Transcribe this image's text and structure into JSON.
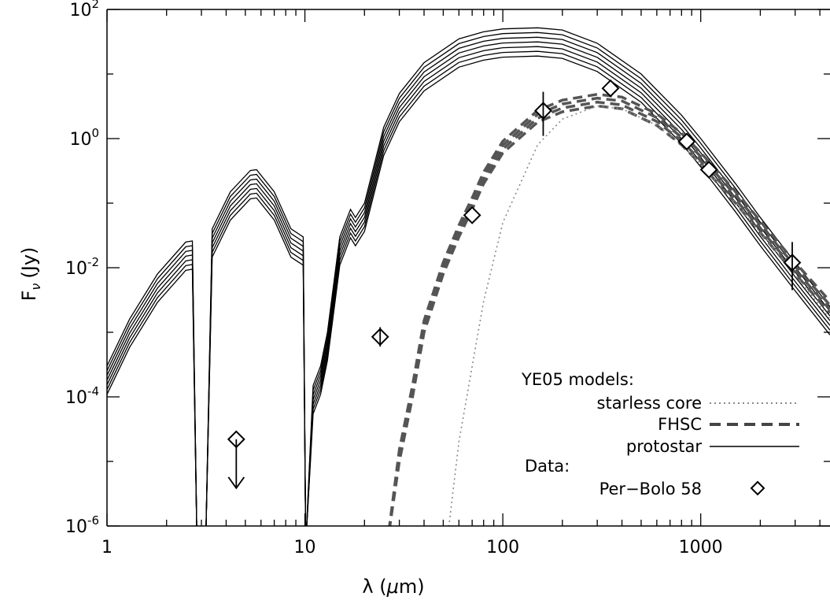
{
  "chart_data": {
    "type": "line",
    "xscale": "log",
    "yscale": "log",
    "xlim": [
      1,
      4500
    ],
    "ylim": [
      1e-06,
      100
    ],
    "xlabel": "λ (μm)",
    "ylabel": "F_ν (Jy)",
    "ylabel_main": "F",
    "ylabel_sub": "ν",
    "ylabel_unit": "(Jy)",
    "xlabel_main": "λ (",
    "xlabel_mu": "μ",
    "xlabel_unit": "m)",
    "x_ticks": [
      1,
      10,
      100,
      1000
    ],
    "x_tick_labels": [
      "1",
      "10",
      "100",
      "1000"
    ],
    "y_ticks": [
      1e-06,
      0.0001,
      0.01,
      1,
      100
    ],
    "y_tick_base": "10",
    "y_tick_exponents": [
      "-6",
      "-4",
      "-2",
      "0",
      "2"
    ],
    "legend": {
      "placement": "bottom-right",
      "heading": "YE05 models:",
      "entries": [
        {
          "label": "starless core",
          "style": "dotted",
          "color": "#888888"
        },
        {
          "label": "FHSC",
          "style": "dashed",
          "color": "#555555"
        },
        {
          "label": "protostar",
          "style": "solid",
          "color": "#000000"
        }
      ],
      "data_heading": "Data:",
      "data_entry": {
        "label": "Per−Bolo 58",
        "marker": "diamond"
      }
    },
    "series": [
      {
        "name": "protostar",
        "style": "solid",
        "color": "#000000",
        "n_curves": 7,
        "offset_dex_per_curve": -0.073,
        "points": [
          [
            1,
            0.0003
          ],
          [
            1.3,
            0.0016
          ],
          [
            1.8,
            0.008
          ],
          [
            2.5,
            0.025
          ],
          [
            2.7,
            0.026
          ],
          [
            2.85,
            1e-06
          ],
          [
            3.15,
            1e-06
          ],
          [
            3.4,
            0.04
          ],
          [
            4.2,
            0.15
          ],
          [
            5.3,
            0.32
          ],
          [
            5.7,
            0.33
          ],
          [
            7,
            0.15
          ],
          [
            8.5,
            0.04
          ],
          [
            9.8,
            0.03
          ],
          [
            10.1,
            1e-06
          ],
          [
            11,
            0.00015
          ],
          [
            12,
            0.0003
          ],
          [
            13,
            0.001
          ],
          [
            15,
            0.03
          ],
          [
            17,
            0.08
          ],
          [
            18,
            0.06
          ],
          [
            20,
            0.1
          ],
          [
            25,
            1.5
          ],
          [
            30,
            5
          ],
          [
            40,
            15
          ],
          [
            60,
            35
          ],
          [
            80,
            45
          ],
          [
            100,
            50
          ],
          [
            150,
            52
          ],
          [
            200,
            48
          ],
          [
            300,
            30
          ],
          [
            500,
            10
          ],
          [
            800,
            2.3
          ],
          [
            1000,
            1
          ],
          [
            1500,
            0.2
          ],
          [
            2000,
            0.06
          ],
          [
            3000,
            0.012
          ],
          [
            4500,
            0.0025
          ]
        ]
      },
      {
        "name": "FHSC",
        "style": "dashed",
        "color": "#555555",
        "n_curves": 4,
        "offset_dex_per_curve": 0.06,
        "points": [
          [
            26,
            1e-06
          ],
          [
            30,
            1e-05
          ],
          [
            35,
            0.0001
          ],
          [
            40,
            0.001
          ],
          [
            50,
            0.008
          ],
          [
            60,
            0.03
          ],
          [
            70,
            0.08
          ],
          [
            80,
            0.2
          ],
          [
            100,
            0.6
          ],
          [
            150,
            1.8
          ],
          [
            200,
            2.6
          ],
          [
            300,
            3.2
          ],
          [
            400,
            2.9
          ],
          [
            600,
            1.6
          ],
          [
            800,
            0.8
          ],
          [
            1000,
            0.4
          ],
          [
            1500,
            0.1
          ],
          [
            2000,
            0.035
          ],
          [
            3000,
            0.008
          ],
          [
            4500,
            0.002
          ]
        ]
      },
      {
        "name": "starless core",
        "style": "dotted",
        "color": "#888888",
        "n_curves": 1,
        "offset_dex_per_curve": 0,
        "points": [
          [
            52,
            1e-06
          ],
          [
            60,
            2e-05
          ],
          [
            70,
            0.0003
          ],
          [
            80,
            0.003
          ],
          [
            100,
            0.05
          ],
          [
            150,
            0.8
          ],
          [
            200,
            2
          ],
          [
            300,
            3.2
          ],
          [
            400,
            2.9
          ],
          [
            600,
            1.6
          ],
          [
            800,
            0.8
          ],
          [
            1000,
            0.4
          ],
          [
            1500,
            0.1
          ],
          [
            2000,
            0.035
          ],
          [
            3000,
            0.008
          ],
          [
            4500,
            0.0016
          ]
        ]
      },
      {
        "name": "Per-Bolo 58",
        "style": "markers",
        "marker": "diamond",
        "points": [
          {
            "x": 4.5,
            "y": 2.2e-05,
            "upper_limit": true
          },
          {
            "x": 24,
            "y": 0.00085,
            "err": [
              0.0006,
              0.0012
            ]
          },
          {
            "x": 70,
            "y": 0.065
          },
          {
            "x": 160,
            "y": 2.7,
            "err": [
              1.1,
              5.3
            ]
          },
          {
            "x": 350,
            "y": 6
          },
          {
            "x": 850,
            "y": 0.9
          },
          {
            "x": 1100,
            "y": 0.33
          },
          {
            "x": 2900,
            "y": 0.012,
            "err": [
              0.0045,
              0.025
            ]
          }
        ]
      }
    ]
  }
}
